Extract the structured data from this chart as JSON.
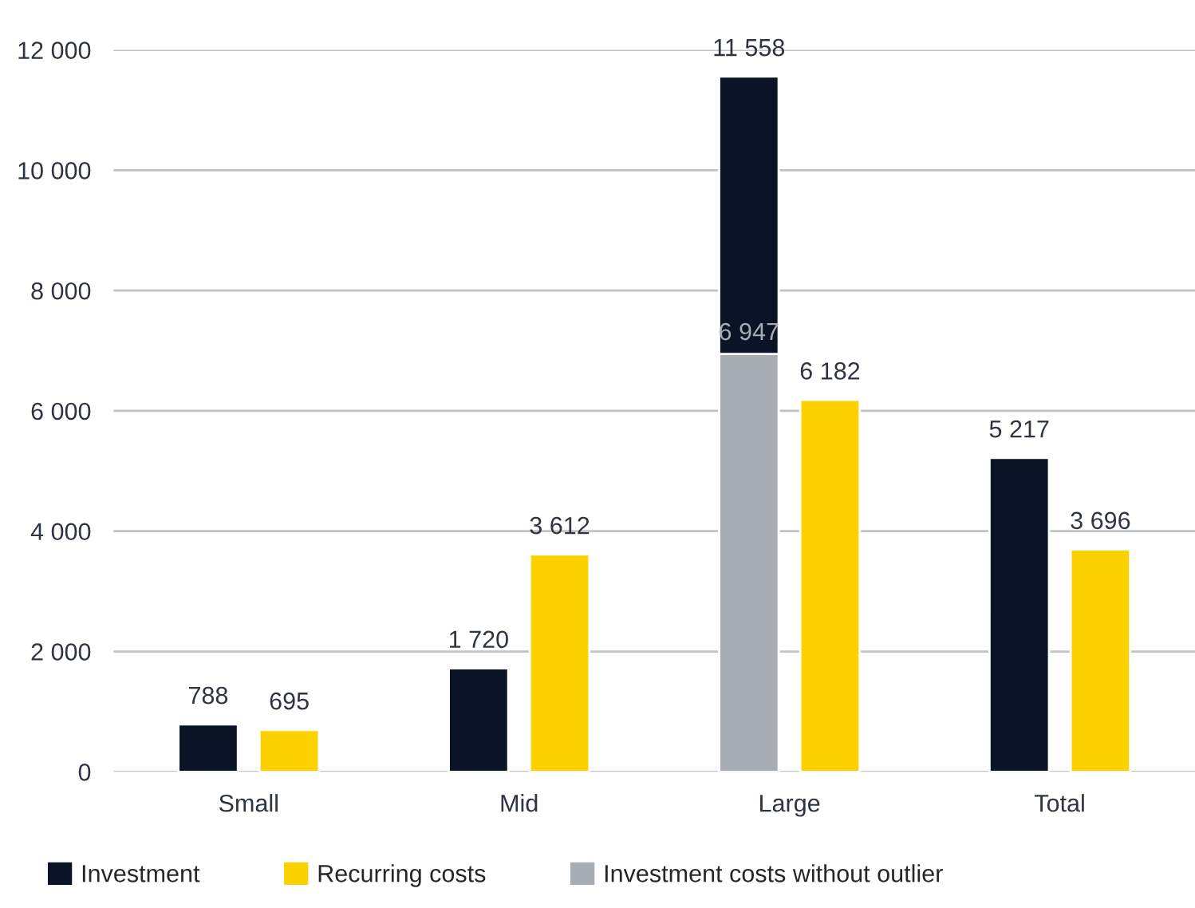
{
  "chart_data": {
    "type": "bar",
    "categories": [
      "Small",
      "Mid",
      "Large",
      "Total"
    ],
    "series": [
      {
        "name": "Investment",
        "color": "#0a1426",
        "values": [
          788,
          1720,
          11558,
          5217
        ],
        "value_labels": [
          "788",
          "1 720",
          "11 558",
          "5 217"
        ]
      },
      {
        "name": "Recurring costs",
        "color": "#fdd100",
        "values": [
          695,
          3612,
          6182,
          3696
        ],
        "value_labels": [
          "695",
          "3 612",
          "6 182",
          "3 696"
        ]
      },
      {
        "name": "Investment costs without outlier",
        "color": "#a7adb3",
        "values": [
          null,
          null,
          6947,
          null
        ],
        "value_labels": [
          null,
          null,
          "6 947",
          null
        ]
      }
    ],
    "ylim": [
      0,
      12000
    ],
    "yticks": [
      {
        "value": 0,
        "label": "0"
      },
      {
        "value": 2000,
        "label": "2 000"
      },
      {
        "value": 4000,
        "label": "4 000"
      },
      {
        "value": 6000,
        "label": "6 000"
      },
      {
        "value": 8000,
        "label": "8 000"
      },
      {
        "value": 10000,
        "label": "10 000"
      },
      {
        "value": 12000,
        "label": "12 000"
      }
    ],
    "grid": "y",
    "legend": "bottom"
  }
}
